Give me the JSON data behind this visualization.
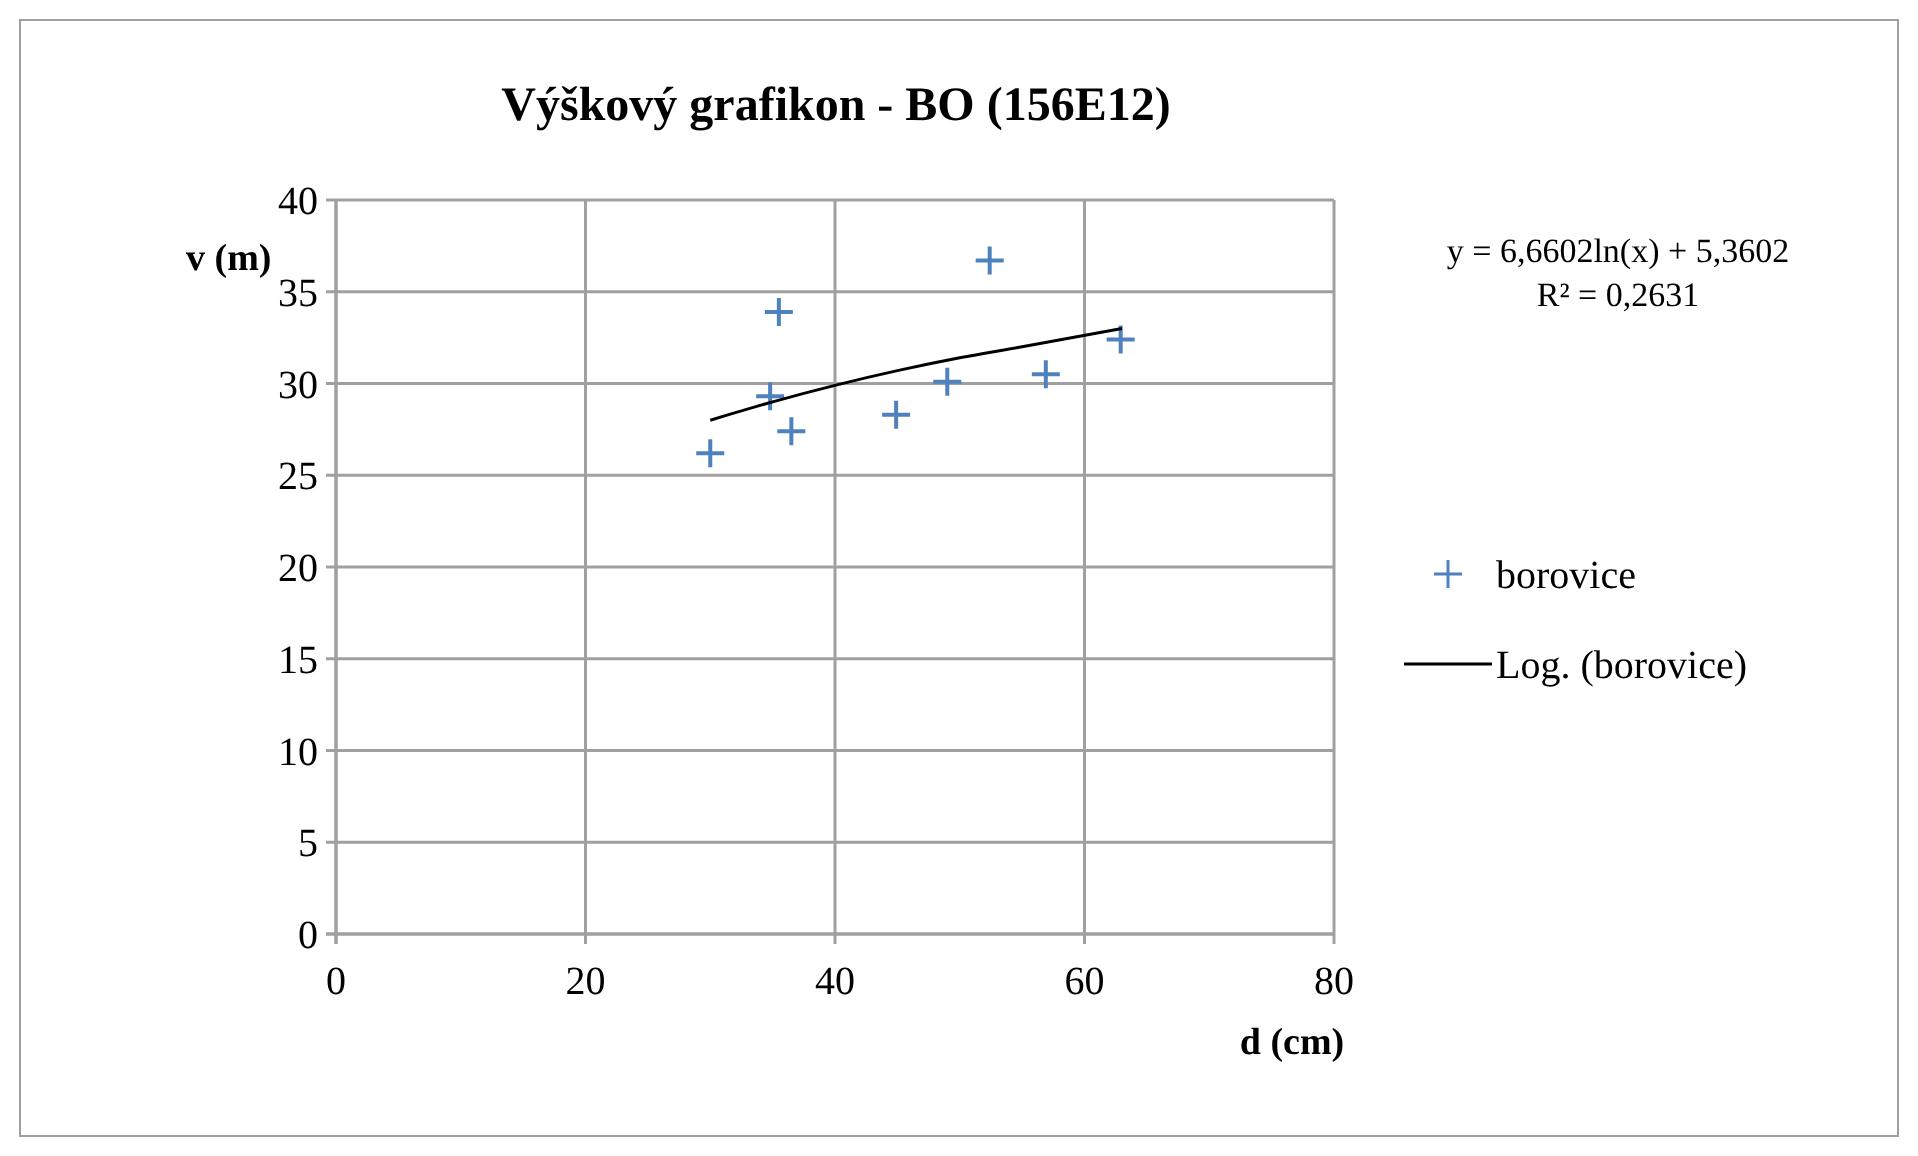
{
  "chart_data": {
    "type": "scatter",
    "title": "Výškový grafikon - BO (156E12)",
    "xlabel": "d (cm)",
    "ylabel": "v (m)",
    "xlim": [
      0,
      80
    ],
    "xticks": [
      0,
      20,
      40,
      60,
      80
    ],
    "ylim": [
      0,
      40
    ],
    "yticks": [
      0,
      5,
      10,
      15,
      20,
      25,
      30,
      35,
      40
    ],
    "grid": true,
    "legend": "right",
    "annotations": [
      "y = 6,6602ln(x) + 5,3602",
      "R² = 0,2631"
    ],
    "series": [
      {
        "name": "borovice",
        "marker": "cross",
        "color": "#4f81bd",
        "x": [
          30,
          34.8,
          35.5,
          36.5,
          44.9,
          49,
          52.4,
          56.9,
          62.9
        ],
        "values": [
          26.2,
          29.3,
          33.9,
          27.4,
          28.3,
          30.1,
          36.7,
          30.5,
          32.4
        ]
      },
      {
        "name": "Log. (borovice)",
        "type": "line",
        "marker": "none",
        "line_style": "solid",
        "color": "#000000",
        "x": [
          30,
          35,
          40,
          45,
          50,
          55,
          63
        ],
        "values": [
          28,
          29,
          29.9,
          30.7,
          31.4,
          32,
          33
        ]
      }
    ]
  }
}
